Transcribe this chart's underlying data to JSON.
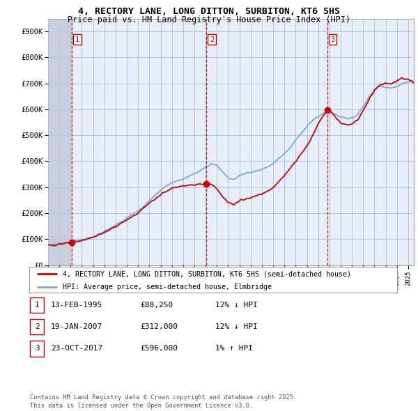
{
  "title_line1": "4, RECTORY LANE, LONG DITTON, SURBITON, KT6 5HS",
  "title_line2": "Price paid vs. HM Land Registry's House Price Index (HPI)",
  "background_color": "#e8eef8",
  "hatch_region_color": "#c8cedd",
  "grid_color": "#afc5dc",
  "line1_color": "#cc0000",
  "line2_color": "#7aaad0",
  "sale_marker_color": "#cc0000",
  "sale_vline_color": "#cc0000",
  "ytick_labels": [
    "£0",
    "£100K",
    "£200K",
    "£300K",
    "£400K",
    "£500K",
    "£600K",
    "£700K",
    "£800K",
    "£900K"
  ],
  "ytick_values": [
    0,
    100000,
    200000,
    300000,
    400000,
    500000,
    600000,
    700000,
    800000,
    900000
  ],
  "ylim": [
    0,
    950000
  ],
  "xlim_start": 1993.0,
  "xlim_end": 2025.5,
  "sale1_x": 1995.12,
  "sale1_y": 88250,
  "sale1_label": "1",
  "sale2_x": 2007.05,
  "sale2_y": 312000,
  "sale2_label": "2",
  "sale3_x": 2017.81,
  "sale3_y": 596000,
  "sale3_label": "3",
  "legend_line1": "4, RECTORY LANE, LONG DITTON, SURBITON, KT6 5HS (semi-detached house)",
  "legend_line2": "HPI: Average price, semi-detached house, Elmbridge",
  "table_data": [
    [
      "1",
      "13-FEB-1995",
      "£88,250",
      "12% ↓ HPI"
    ],
    [
      "2",
      "19-JAN-2007",
      "£312,000",
      "12% ↓ HPI"
    ],
    [
      "3",
      "23-OCT-2017",
      "£596,000",
      "1% ↑ HPI"
    ]
  ],
  "footnote": "Contains HM Land Registry data © Crown copyright and database right 2025.\nThis data is licensed under the Open Government Licence v3.0.",
  "hatch_end_year": 1995.12
}
